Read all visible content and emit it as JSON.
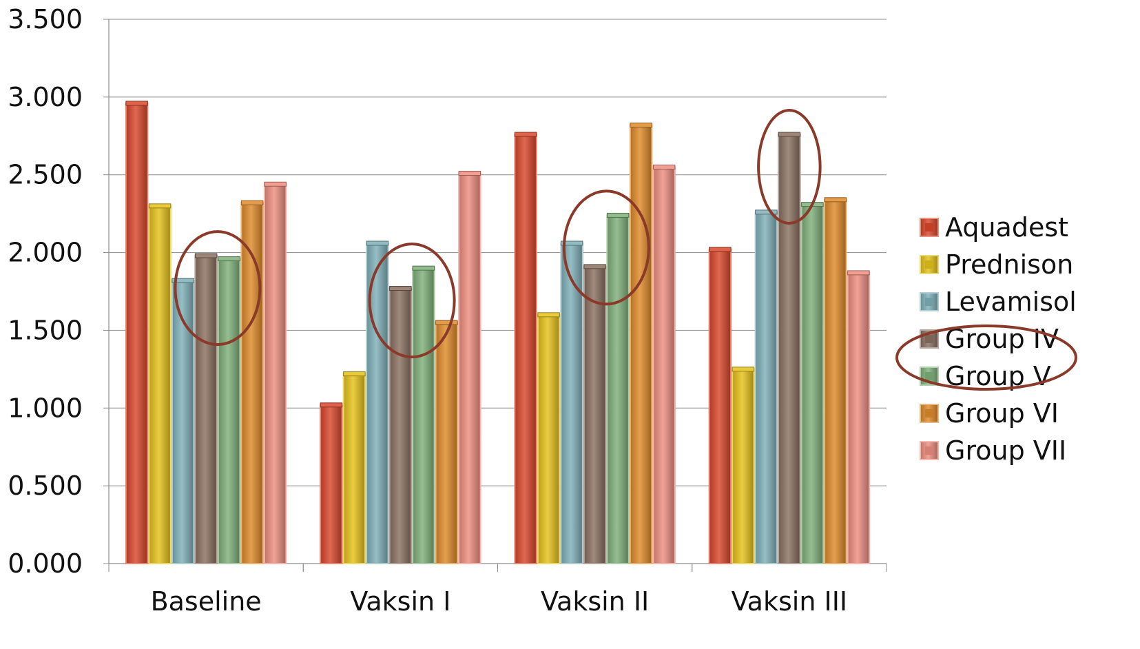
{
  "chart_data": {
    "type": "bar",
    "categories": [
      "Baseline",
      "Vaksin I",
      "Vaksin II",
      "Vaksin III"
    ],
    "ylim": [
      0,
      3.5
    ],
    "yticks": [
      "0.000",
      "0.500",
      "1.000",
      "1.500",
      "2.000",
      "2.500",
      "3.000",
      "3.500"
    ],
    "ytick_values": [
      0,
      0.5,
      1.0,
      1.5,
      2.0,
      2.5,
      3.0,
      3.5
    ],
    "grid": true,
    "legend_position": "right",
    "series": [
      {
        "name": "Aquadest",
        "color": "#d9472b",
        "values": [
          2.96,
          1.02,
          2.76,
          2.02
        ]
      },
      {
        "name": "Prednison",
        "color": "#e6c21a",
        "values": [
          2.3,
          1.22,
          1.6,
          1.25
        ]
      },
      {
        "name": "Levamisol",
        "color": "#7fb0b8",
        "values": [
          1.82,
          2.06,
          2.06,
          2.26
        ]
      },
      {
        "name": "Group IV",
        "color": "#8a7060",
        "values": [
          1.98,
          1.77,
          1.91,
          2.76
        ]
      },
      {
        "name": "Group V",
        "color": "#7fb07a",
        "values": [
          1.96,
          1.9,
          2.24,
          2.31
        ]
      },
      {
        "name": "Group VI",
        "color": "#df8a2a",
        "values": [
          2.32,
          1.55,
          2.82,
          2.34
        ]
      },
      {
        "name": "Group VII",
        "color": "#ee8e80",
        "values": [
          2.44,
          2.51,
          2.55,
          1.87
        ]
      }
    ],
    "annotations": [
      {
        "type": "ellipse",
        "category": "Baseline",
        "series": [
          "Group IV",
          "Group V"
        ]
      },
      {
        "type": "ellipse",
        "category": "Vaksin I",
        "series": [
          "Group IV",
          "Group V"
        ]
      },
      {
        "type": "ellipse",
        "category": "Vaksin II",
        "series": [
          "Group IV",
          "Group V"
        ]
      },
      {
        "type": "ellipse",
        "category": "Vaksin III",
        "series": [
          "Group IV"
        ]
      },
      {
        "type": "ellipse",
        "target": "legend",
        "series": [
          "Group IV",
          "Group V"
        ]
      }
    ]
  }
}
